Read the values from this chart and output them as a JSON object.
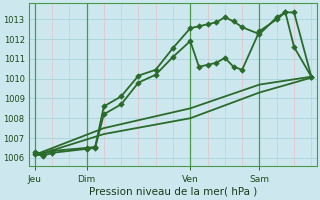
{
  "background_color": "#cce8ee",
  "grid_color_h": "#a8d4da",
  "grid_color_v_minor": "#e8c0c8",
  "grid_color_v_major": "#4a9a4a",
  "line_color": "#2a6a2a",
  "title": "Pression niveau de la mer( hPa )",
  "ylabel_ticks": [
    1006,
    1007,
    1008,
    1009,
    1010,
    1011,
    1012,
    1013
  ],
  "ylim": [
    1005.6,
    1013.8
  ],
  "xlim": [
    -0.3,
    16.3
  ],
  "day_labels": [
    "Jeu",
    "Dim",
    "Ven",
    "Sam"
  ],
  "day_vlines": [
    0,
    3,
    9,
    13
  ],
  "total_x": 16,
  "series": [
    {
      "x": [
        0,
        0.5,
        1.0,
        3.0,
        3.5,
        4.0,
        5.0,
        6.0,
        7.0,
        8.0,
        9.0,
        9.5,
        10.0,
        10.5,
        11.0,
        11.5,
        12.0,
        13.0,
        14.0,
        14.5,
        15.0,
        16.0
      ],
      "y": [
        1006.3,
        1006.2,
        1006.35,
        1006.5,
        1006.55,
        1008.6,
        1009.1,
        1010.15,
        1010.45,
        1011.55,
        1012.55,
        1012.65,
        1012.75,
        1012.85,
        1013.1,
        1012.9,
        1012.6,
        1012.25,
        1013.1,
        1013.35,
        1013.35,
        1010.1
      ],
      "marker": "D",
      "markersize": 2.8,
      "linewidth": 1.3
    },
    {
      "x": [
        0,
        0.5,
        1.0,
        3.0,
        3.5,
        4.0,
        5.0,
        6.0,
        7.0,
        8.0,
        9.0,
        9.5,
        10.0,
        10.5,
        11.0,
        11.5,
        12.0,
        13.0,
        14.0,
        14.5,
        15.0,
        16.0
      ],
      "y": [
        1006.2,
        1006.1,
        1006.25,
        1006.45,
        1006.5,
        1008.2,
        1008.7,
        1009.8,
        1010.2,
        1011.1,
        1011.9,
        1010.6,
        1010.7,
        1010.8,
        1011.05,
        1010.6,
        1010.45,
        1012.4,
        1013.0,
        1013.35,
        1011.6,
        1010.1
      ],
      "marker": "D",
      "markersize": 2.8,
      "linewidth": 1.3
    },
    {
      "x": [
        0,
        4.0,
        9.0,
        13.0,
        16.0
      ],
      "y": [
        1006.15,
        1007.5,
        1008.5,
        1009.7,
        1010.1
      ],
      "marker": null,
      "markersize": 0,
      "linewidth": 1.3
    },
    {
      "x": [
        0,
        4.0,
        9.0,
        13.0,
        16.0
      ],
      "y": [
        1006.1,
        1007.2,
        1008.0,
        1009.3,
        1010.05
      ],
      "marker": null,
      "markersize": 0,
      "linewidth": 1.3
    }
  ]
}
